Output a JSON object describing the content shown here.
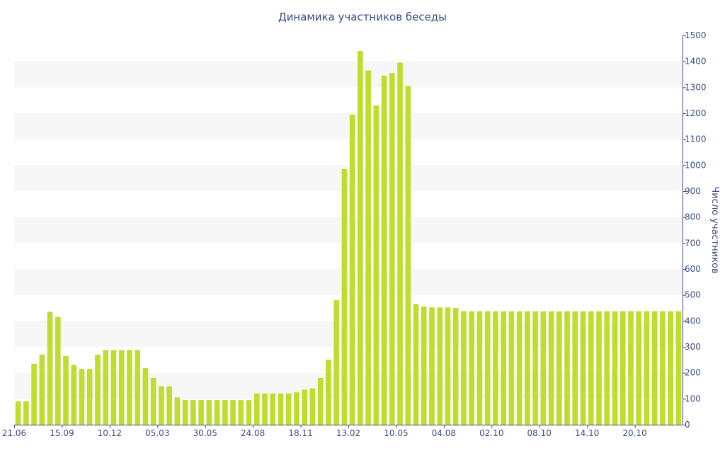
{
  "chart_data": {
    "type": "bar",
    "title": "Динамика участников беседы",
    "ylabel": "Число участников",
    "xlabel": "",
    "ylim": [
      0,
      1500
    ],
    "y_ticks": [
      0,
      100,
      200,
      300,
      400,
      500,
      600,
      700,
      800,
      900,
      1000,
      1100,
      1200,
      1300,
      1400,
      1500
    ],
    "y_axis_side": "right",
    "grid": "alternating horizontal bands",
    "bar_color": "#bedd2e",
    "band_color": "#f7f7f7",
    "text_color": "#3b4b86",
    "x_tick_labels": [
      {
        "index": 0,
        "label": "21.06"
      },
      {
        "index": 6,
        "label": "15.09"
      },
      {
        "index": 12,
        "label": "10.12"
      },
      {
        "index": 18,
        "label": "05.03"
      },
      {
        "index": 24,
        "label": "30.05"
      },
      {
        "index": 30,
        "label": "24.08"
      },
      {
        "index": 36,
        "label": "18.11"
      },
      {
        "index": 42,
        "label": "13.02"
      },
      {
        "index": 48,
        "label": "10.05"
      },
      {
        "index": 54,
        "label": "04.08"
      },
      {
        "index": 60,
        "label": "02.10"
      },
      {
        "index": 66,
        "label": "08.10"
      },
      {
        "index": 72,
        "label": "14.10"
      },
      {
        "index": 78,
        "label": "20.10"
      }
    ],
    "values": [
      90,
      90,
      235,
      270,
      435,
      415,
      265,
      230,
      215,
      215,
      270,
      288,
      288,
      288,
      288,
      288,
      218,
      180,
      148,
      148,
      105,
      95,
      95,
      95,
      95,
      95,
      95,
      95,
      95,
      95,
      120,
      120,
      120,
      120,
      120,
      125,
      135,
      140,
      180,
      250,
      480,
      985,
      1195,
      1440,
      1365,
      1230,
      1345,
      1355,
      1395,
      1305,
      465,
      455,
      452,
      452,
      452,
      450,
      437,
      437,
      437,
      437,
      437,
      437,
      437,
      437,
      437,
      437,
      437,
      437,
      437,
      437,
      437,
      437,
      437,
      437,
      437,
      437,
      437,
      437,
      437,
      437,
      437,
      437,
      437,
      437
    ]
  }
}
